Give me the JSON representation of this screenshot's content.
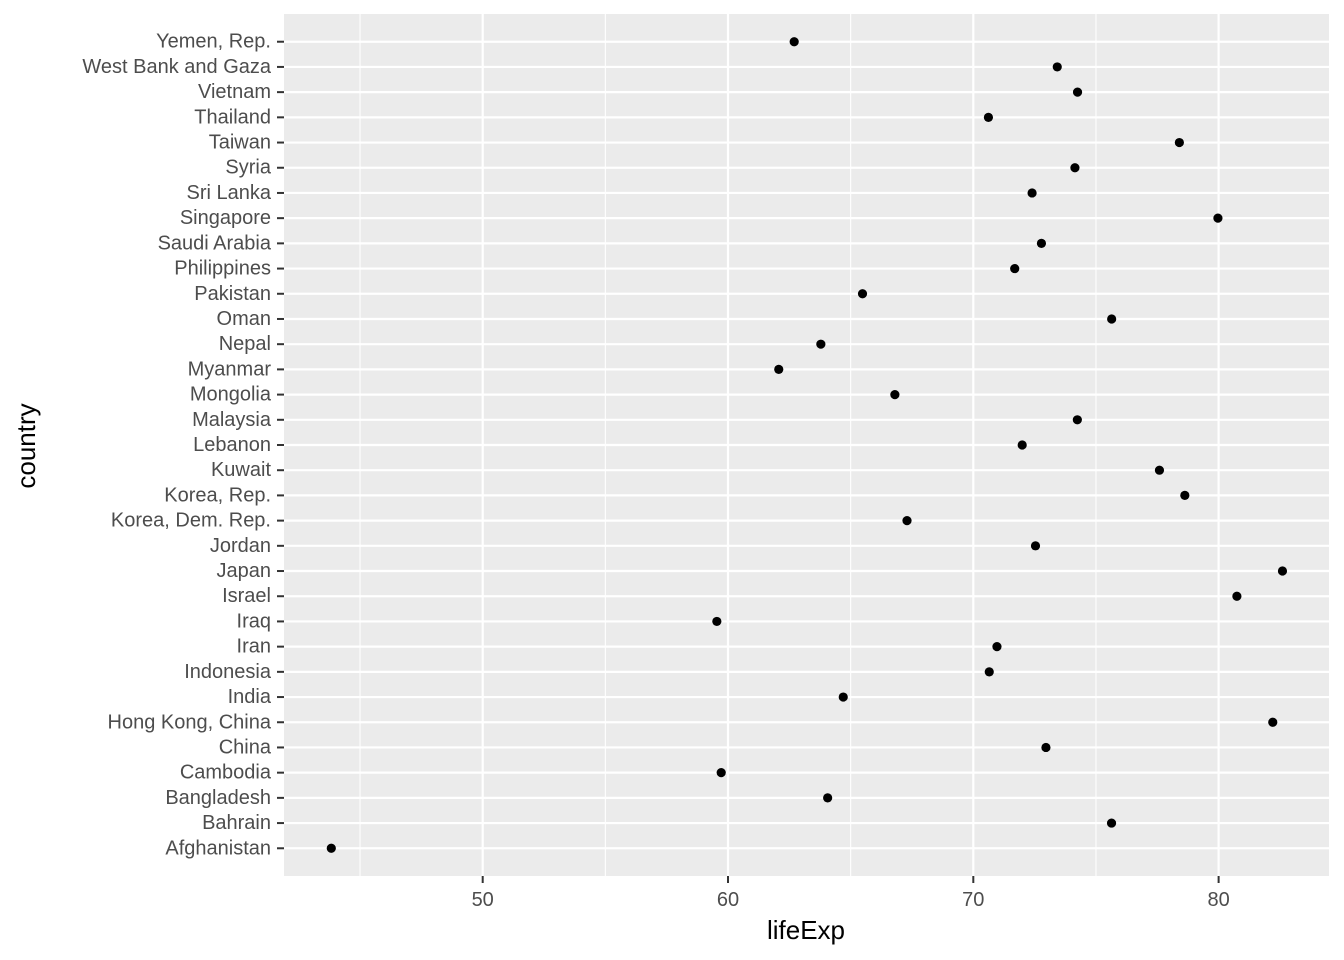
{
  "chart_data": {
    "type": "scatter",
    "title": "",
    "xlabel": "lifeExp",
    "ylabel": "country",
    "xlim": [
      41.9,
      84.5
    ],
    "x_ticks": [
      50,
      60,
      70,
      80
    ],
    "x_tick_labels": [
      "50",
      "60",
      "70",
      "80"
    ],
    "grid": true,
    "panel_color": "#ebebeb",
    "grid_color": "#ffffff",
    "point_color": "#000000",
    "categories": [
      "Afghanistan",
      "Bahrain",
      "Bangladesh",
      "Cambodia",
      "China",
      "Hong Kong, China",
      "India",
      "Indonesia",
      "Iran",
      "Iraq",
      "Israel",
      "Japan",
      "Jordan",
      "Korea, Dem. Rep.",
      "Korea, Rep.",
      "Kuwait",
      "Lebanon",
      "Malaysia",
      "Mongolia",
      "Myanmar",
      "Nepal",
      "Oman",
      "Pakistan",
      "Philippines",
      "Saudi Arabia",
      "Singapore",
      "Sri Lanka",
      "Syria",
      "Taiwan",
      "Thailand",
      "Vietnam",
      "West Bank and Gaza",
      "Yemen, Rep."
    ],
    "values": [
      43.828,
      75.635,
      64.062,
      59.723,
      72.961,
      82.208,
      64.698,
      70.65,
      70.964,
      59.545,
      80.745,
      82.603,
      72.535,
      67.297,
      78.623,
      77.588,
      71.993,
      74.241,
      66.803,
      62.069,
      63.785,
      75.64,
      65.483,
      71.688,
      72.777,
      79.972,
      72.396,
      74.143,
      78.4,
      70.616,
      74.249,
      73.422,
      62.698
    ]
  }
}
